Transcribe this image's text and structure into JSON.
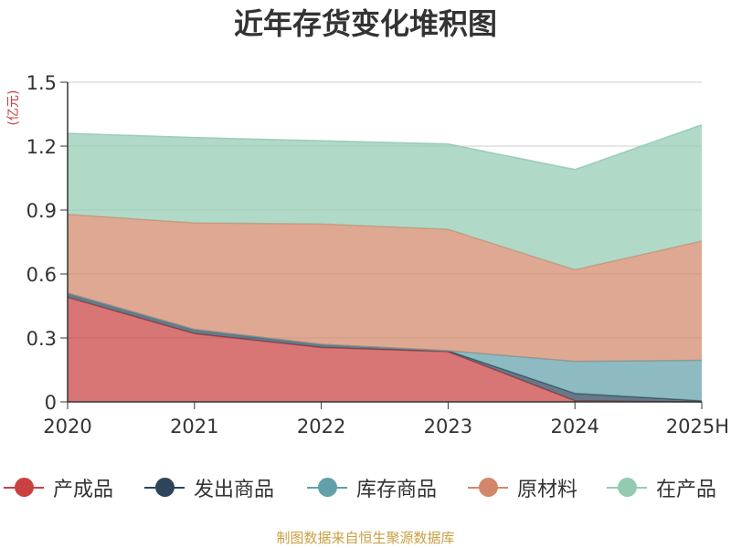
{
  "title": "近年存货变化堆积图",
  "unit_label": "(亿元)",
  "source": "制图数据来自恒生聚源数据库",
  "chart_data": {
    "type": "area",
    "stacked": true,
    "title": "近年存货变化堆积图",
    "ylabel": "(亿元)",
    "categories": [
      "2020",
      "2021",
      "2022",
      "2023",
      "2024",
      "2025H"
    ],
    "ylim": [
      0,
      1.5
    ],
    "yticks": [
      "0",
      "0.3",
      "0.6",
      "0.9",
      "1.2",
      "1.5"
    ],
    "grid": true,
    "legend_position": "bottom",
    "series": [
      {
        "name": "产成品",
        "color": "#c94141",
        "values": [
          0.49,
          0.32,
          0.255,
          0.235,
          0.005,
          0.0
        ]
      },
      {
        "name": "发出商品",
        "color": "#2e4458",
        "values": [
          0.02,
          0.02,
          0.015,
          0.005,
          0.035,
          0.005
        ]
      },
      {
        "name": "库存商品",
        "color": "#62a0aa",
        "values": [
          0.0,
          0.0,
          0.0,
          0.0,
          0.15,
          0.19
        ]
      },
      {
        "name": "原材料",
        "color": "#d3876a",
        "values": [
          0.37,
          0.5,
          0.565,
          0.57,
          0.43,
          0.56
        ]
      },
      {
        "name": "在产品",
        "color": "#93cbb1",
        "values": [
          0.38,
          0.4,
          0.39,
          0.4,
          0.47,
          0.545
        ]
      }
    ]
  }
}
